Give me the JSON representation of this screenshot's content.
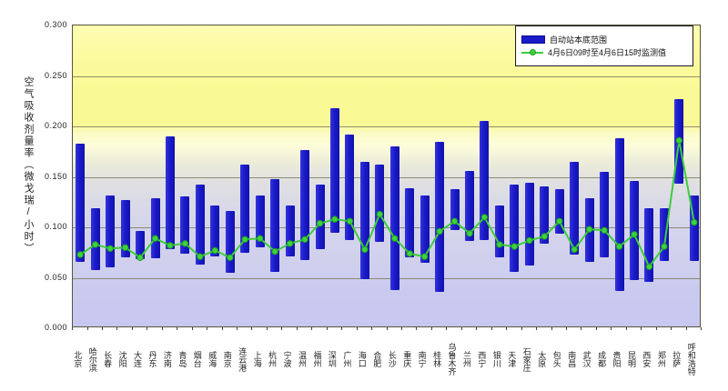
{
  "chart_data": {
    "type": "bar",
    "subtype": "floating-range-bars-with-line-overlay",
    "title": "",
    "ylabel": "空气吸收剂量率（微戈瑞/小时）",
    "ylim": [
      0.0,
      0.3
    ],
    "ytick_step": 0.05,
    "yticks": [
      "0.300",
      "0.250",
      "0.200",
      "0.150",
      "0.100",
      "0.050",
      "0.000"
    ],
    "grid": true,
    "legend_position": "top-right",
    "categories": [
      "北京",
      "哈尔滨",
      "长春",
      "沈阳",
      "大连",
      "丹东",
      "济南",
      "青岛",
      "烟台",
      "威海",
      "南京",
      "连云港",
      "上海",
      "杭州",
      "宁波",
      "温州",
      "福州",
      "深圳",
      "广州",
      "海口",
      "合肥",
      "长沙",
      "重庆",
      "南宁",
      "桂林",
      "乌鲁木齐",
      "兰州",
      "西宁",
      "银川",
      "天津",
      "石家庄",
      "太原",
      "包头",
      "南昌",
      "武汉",
      "成都",
      "贵阳",
      "昆明",
      "西安",
      "郑州",
      "拉萨",
      "呼和浩特"
    ],
    "series": [
      {
        "name": "自动站本底范围",
        "type": "range-bar",
        "color": "#1b1bc9",
        "low": [
          0.066,
          0.058,
          0.06,
          0.07,
          0.068,
          0.069,
          0.078,
          0.074,
          0.063,
          0.071,
          0.055,
          0.075,
          0.08,
          0.056,
          0.071,
          0.068,
          0.078,
          0.095,
          0.087,
          0.049,
          0.086,
          0.038,
          0.07,
          0.065,
          0.036,
          0.097,
          0.086,
          0.087,
          0.07,
          0.056,
          0.062,
          0.084,
          0.094,
          0.073,
          0.066,
          0.07,
          0.037,
          0.048,
          0.046,
          0.067,
          0.143,
          0.067
        ],
        "high": [
          0.183,
          0.119,
          0.132,
          0.127,
          0.096,
          0.129,
          0.19,
          0.131,
          0.142,
          0.122,
          0.116,
          0.162,
          0.132,
          0.148,
          0.122,
          0.177,
          0.142,
          0.218,
          0.192,
          0.165,
          0.162,
          0.18,
          0.139,
          0.132,
          0.185,
          0.138,
          0.156,
          0.205,
          0.122,
          0.142,
          0.144,
          0.141,
          0.138,
          0.165,
          0.129,
          0.155,
          0.188,
          0.146,
          0.119,
          0.119,
          0.227,
          0.132
        ]
      },
      {
        "name": "4月6日09时至4月6日15时监测值",
        "type": "line",
        "color": "#3dcd3d",
        "values": [
          0.073,
          0.083,
          0.079,
          0.08,
          0.07,
          0.089,
          0.082,
          0.084,
          0.071,
          0.077,
          0.07,
          0.088,
          0.089,
          0.076,
          0.084,
          0.088,
          0.104,
          0.108,
          0.106,
          0.078,
          0.113,
          0.089,
          0.074,
          0.071,
          0.096,
          0.106,
          0.094,
          0.11,
          0.083,
          0.081,
          0.087,
          0.091,
          0.106,
          0.078,
          0.098,
          0.097,
          0.081,
          0.093,
          0.061,
          0.081,
          0.186,
          0.105
        ]
      }
    ]
  }
}
